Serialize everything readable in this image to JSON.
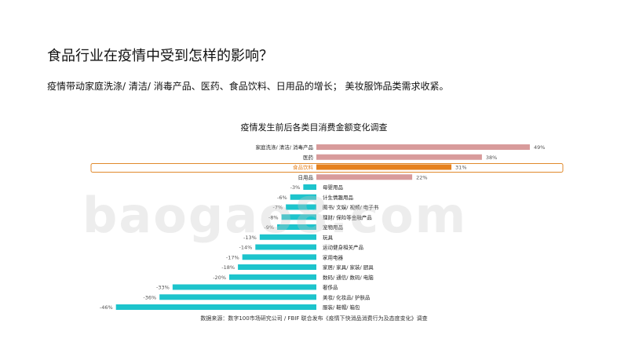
{
  "page": {
    "title": "食品行业在疫情中受到怎样的影响？",
    "subtitle": "疫情带动家庭洗涤/ 清洁/ 消毒产品、医药、食品饮料、日用品的增长； 美妆服饰品类需求收紧。",
    "source": "数据来源：数字100市场研究公司   / FBIF 联合发布《疫情下快消品消费行为及态度变化》调查",
    "watermark": "baogao8.com"
  },
  "chart_data": {
    "type": "bar",
    "orientation": "horizontal",
    "title": "疫情发生前后各类目消费金额变化调查",
    "categories": [
      "家庭洗涤/ 清洁/ 消毒产品",
      "医药",
      "食品饮料",
      "日用品",
      "母婴用品",
      "计生情趣用品",
      "图书/ 文娱/ 视频/ 电子书",
      "理财/ 保险等金融产品",
      "宠物用品",
      "玩具",
      "运动健身相关产品",
      "家用电器",
      "家居/ 家具/ 家装/ 厨具",
      "数码/ 通信/ 数码/ 电脑",
      "奢侈品",
      "美妆/ 化妆品/ 护肤品",
      "服装/ 鞋帽/ 箱包"
    ],
    "values": [
      49,
      38,
      31,
      22,
      -3,
      -6,
      -7,
      -8,
      -9,
      -13,
      -14,
      -17,
      -18,
      -20,
      -33,
      -36,
      -46
    ],
    "value_labels": [
      "49%",
      "38%",
      "31%",
      "22%",
      "-3%",
      "-6%",
      "-7%",
      "-8%",
      "-9%",
      "-13%",
      "-14%",
      "-17%",
      "-18%",
      "-20%",
      "-33%",
      "-36%",
      "-46%"
    ],
    "highlight_category": "食品饮料",
    "colors": {
      "positive": "#d89b9b",
      "highlight": "#e6821e",
      "negative": "#1dc4cc",
      "highlight_box": "#e08a2c"
    }
  }
}
